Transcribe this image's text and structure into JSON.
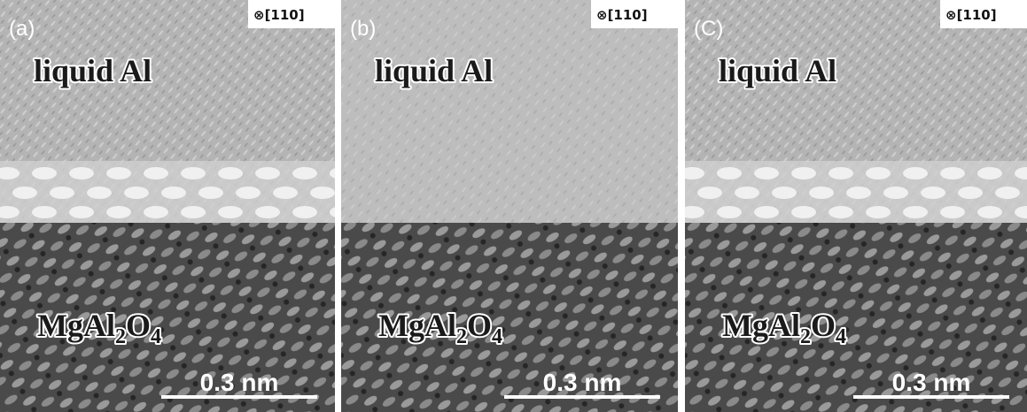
{
  "panels": [
    {
      "label": "(a)",
      "direction": "⊗[110]",
      "top_phase": "liquid Al",
      "bottom_phase": [
        "MgAl",
        "2",
        "O",
        "4"
      ],
      "scale_bar": "0.3 nm"
    },
    {
      "label": "(b)",
      "direction": "⊗[110]",
      "top_phase": "liquid Al",
      "bottom_phase": [
        "MgAl",
        "2",
        "O",
        "4"
      ],
      "scale_bar": "0.3 nm"
    },
    {
      "label": "(C)",
      "direction": "⊗[110]",
      "top_phase": "liquid Al",
      "bottom_phase": [
        "MgAl",
        "2",
        "O",
        "4"
      ],
      "scale_bar": "0.3 nm"
    }
  ]
}
